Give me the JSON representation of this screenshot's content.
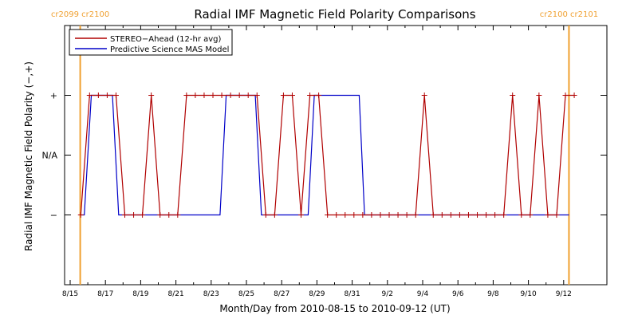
{
  "chart_data": {
    "type": "line",
    "title": "Radial IMF Magnetic Field Polarity Comparisons",
    "xlabel": "Month/Day from 2010-08-15 to 2010-09-12 (UT)",
    "ylabel": "Radial IMF Magnetic Field Polarity (−,+)",
    "xlim": [
      0,
      29.3
    ],
    "ylim": [
      -1.5,
      2.5
    ],
    "x_ticks": [
      {
        "x": 0,
        "label": "8/15"
      },
      {
        "x": 2,
        "label": "8/17"
      },
      {
        "x": 4,
        "label": "8/19"
      },
      {
        "x": 6,
        "label": "8/21"
      },
      {
        "x": 8,
        "label": "8/23"
      },
      {
        "x": 10,
        "label": "8/25"
      },
      {
        "x": 12,
        "label": "8/27"
      },
      {
        "x": 14,
        "label": "8/29"
      },
      {
        "x": 16,
        "label": "8/31"
      },
      {
        "x": 18,
        "label": "9/2"
      },
      {
        "x": 20,
        "label": "9/4"
      },
      {
        "x": 22,
        "label": "9/6"
      },
      {
        "x": 24,
        "label": "9/8"
      },
      {
        "x": 26,
        "label": "9/10"
      },
      {
        "x": 28,
        "label": "9/12"
      }
    ],
    "y_ticks": [
      {
        "y": 1,
        "label": "+"
      },
      {
        "y": 0,
        "label": "N/A"
      },
      {
        "y": -1,
        "label": "−"
      }
    ],
    "carrington_markers": [
      {
        "x": 0.57,
        "left_label": "cr2099",
        "right_label": "cr2100"
      },
      {
        "x": 28.3,
        "left_label": "cr2100",
        "right_label": "cr2101"
      }
    ],
    "marker_color": "#f0a030",
    "series": [
      {
        "name": "STEREO−Ahead (12-hr avg)",
        "color": "#b00000",
        "style": "line-plus",
        "x": [
          0.6,
          1.1,
          1.6,
          2.1,
          2.6,
          3.1,
          3.6,
          4.1,
          4.6,
          5.1,
          5.6,
          6.1,
          6.6,
          7.1,
          7.6,
          8.1,
          8.6,
          9.1,
          9.6,
          10.1,
          10.6,
          11.1,
          11.6,
          12.1,
          12.6,
          13.1,
          13.6,
          14.1,
          14.6,
          15.1,
          15.6,
          16.1,
          16.6,
          17.1,
          17.6,
          18.1,
          18.6,
          19.1,
          19.6,
          20.1,
          20.6,
          21.1,
          21.6,
          22.1,
          22.6,
          23.1,
          23.6,
          24.1,
          24.6,
          25.1,
          25.6,
          26.1,
          26.6,
          27.1,
          27.6,
          28.1,
          28.6
        ],
        "y": [
          -1,
          1,
          1,
          1,
          1,
          -1,
          -1,
          -1,
          1,
          -1,
          -1,
          -1,
          1,
          1,
          1,
          1,
          1,
          1,
          1,
          1,
          1,
          -1,
          -1,
          1,
          1,
          -1,
          1,
          1,
          -1,
          -1,
          -1,
          -1,
          -1,
          -1,
          -1,
          -1,
          -1,
          -1,
          -1,
          1,
          -1,
          -1,
          -1,
          -1,
          -1,
          -1,
          -1,
          -1,
          -1,
          1,
          -1,
          -1,
          1,
          -1,
          -1,
          1,
          1
        ]
      },
      {
        "name": "Predictive Science MAS Model",
        "color": "#0000c8",
        "style": "step",
        "x": [
          0.57,
          0.8,
          1.2,
          2.4,
          2.75,
          3.1,
          8.5,
          8.85,
          10.5,
          10.85,
          13.5,
          13.85,
          16.4,
          16.7,
          28.3
        ],
        "y": [
          -1,
          -1,
          1,
          1,
          -1,
          -1,
          -1,
          1,
          1,
          -1,
          -1,
          1,
          1,
          -1,
          -1
        ]
      }
    ]
  }
}
